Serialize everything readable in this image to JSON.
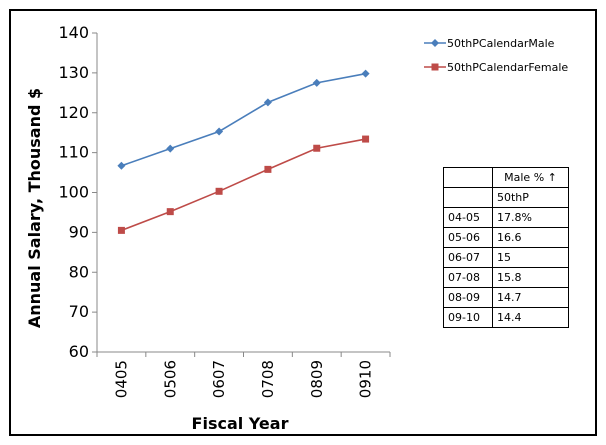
{
  "chart_data": {
    "type": "line",
    "xlabel": "Fiscal Year",
    "ylabel": "Annual Salary, Thousand $",
    "categories": [
      "0405",
      "0506",
      "0607",
      "0708",
      "0809",
      "0910"
    ],
    "ylim": [
      60,
      140
    ],
    "yticks": [
      60,
      70,
      80,
      90,
      100,
      110,
      120,
      130,
      140
    ],
    "legend_position": "top-right",
    "series": [
      {
        "name": "50thPCalendarMale",
        "color": "#4a7ebb",
        "marker": "diamond",
        "values": [
          106.7,
          111.0,
          115.3,
          122.6,
          127.5,
          129.8
        ]
      },
      {
        "name": "50thPCalendarFemale",
        "color": "#be4b48",
        "marker": "square",
        "values": [
          90.5,
          95.2,
          100.3,
          105.8,
          111.1,
          113.4
        ]
      }
    ]
  },
  "table": {
    "header_right": "Male % ↑",
    "subheader_right": "50thP",
    "rows": [
      {
        "year": "04-05",
        "value": "17.8%"
      },
      {
        "year": "05-06",
        "value": "16.6"
      },
      {
        "year": "06-07",
        "value": "15"
      },
      {
        "year": "07-08",
        "value": "15.8"
      },
      {
        "year": "08-09",
        "value": "14.7"
      },
      {
        "year": "09-10",
        "value": "14.4"
      }
    ]
  }
}
